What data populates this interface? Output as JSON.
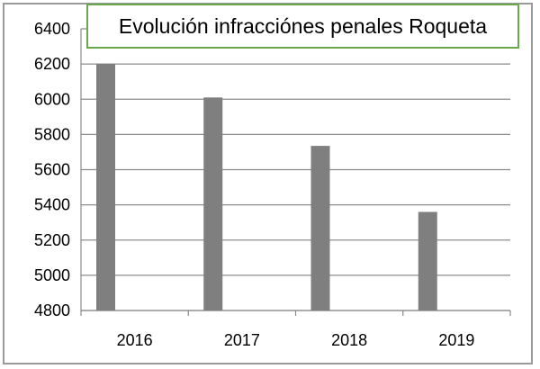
{
  "chart_data": {
    "type": "bar",
    "title": "Evolución infracciónes penales Roqueta",
    "categories": [
      "2016",
      "2017",
      "2018",
      "2019"
    ],
    "values": [
      6200,
      6010,
      5735,
      5360
    ],
    "ylim": [
      4800,
      6400
    ],
    "yticks": [
      4800,
      5000,
      5200,
      5400,
      5600,
      5800,
      6000,
      6200,
      6400
    ],
    "xlabel": "",
    "ylabel": "",
    "grid": true,
    "legend": "none",
    "bar_color": "#7f7f7f",
    "title_border_color": "#6aa84f"
  }
}
